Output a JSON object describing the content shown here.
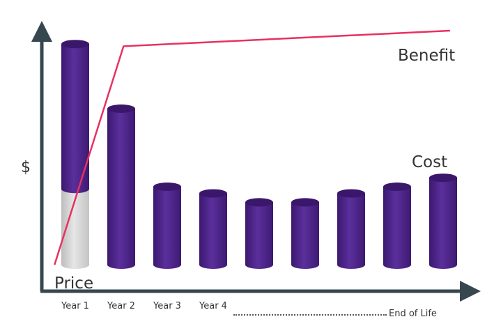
{
  "chart_data": {
    "type": "bar",
    "y_label": "$",
    "categories": [
      "Year 1",
      "Year 2",
      "Year 3",
      "Year 4",
      null,
      null,
      null,
      null,
      "End of Life"
    ],
    "series": [
      {
        "name": "Price",
        "color": "#d4d4d4",
        "values": [
          34,
          null,
          null,
          null,
          null,
          null,
          null,
          null,
          null
        ]
      },
      {
        "name": "Cost",
        "color": "#4a2283",
        "values": [
          65,
          70,
          35,
          32,
          28,
          28,
          32,
          35,
          39
        ]
      }
    ],
    "lines": [
      {
        "name": "Benefit",
        "color": "#e8315f",
        "x": [
          -0.45,
          1.05,
          8.15
        ],
        "values": [
          0,
          98,
          105
        ]
      }
    ],
    "ylim": [
      0,
      105
    ]
  }
}
